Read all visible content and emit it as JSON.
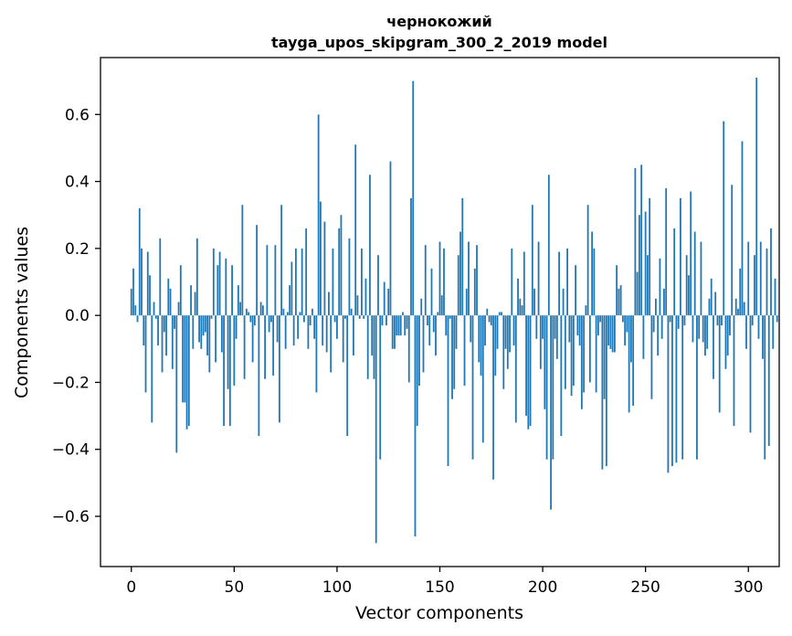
{
  "chart_data": {
    "type": "bar",
    "title": "чернокожий",
    "subtitle": "tayga_upos_skipgram_300_2_2019 model",
    "xlabel": "Vector components",
    "ylabel": "Components values",
    "xlim": [
      -15,
      315
    ],
    "ylim": [
      -0.75,
      0.77
    ],
    "xticks": [
      0,
      50,
      100,
      150,
      200,
      250,
      300
    ],
    "xtick_labels": [
      "0",
      "50",
      "100",
      "150",
      "200",
      "250",
      "300"
    ],
    "yticks": [
      -0.6,
      -0.4,
      -0.2,
      0.0,
      0.2,
      0.4,
      0.6
    ],
    "ytick_labels": [
      "−0.6",
      "−0.4",
      "−0.2",
      "0.0",
      "0.2",
      "0.4",
      "0.6"
    ],
    "bar_color": "#1f77b4",
    "grid": false,
    "values": [
      0.08,
      0.14,
      0.03,
      -0.02,
      0.32,
      0.2,
      -0.09,
      -0.23,
      0.19,
      0.12,
      -0.32,
      0.04,
      -0.01,
      -0.09,
      0.23,
      -0.17,
      -0.05,
      -0.12,
      0.11,
      0.08,
      -0.16,
      -0.04,
      -0.41,
      0.04,
      0.15,
      -0.26,
      -0.26,
      -0.34,
      -0.33,
      0.09,
      -0.1,
      0.07,
      0.23,
      -0.08,
      -0.1,
      -0.06,
      -0.05,
      -0.12,
      -0.17,
      -0.01,
      0.2,
      -0.14,
      0.15,
      0.19,
      -0.11,
      -0.33,
      0.17,
      -0.22,
      -0.33,
      0.15,
      -0.21,
      -0.07,
      0.09,
      0.04,
      0.33,
      -0.19,
      0.02,
      0.01,
      -0.02,
      -0.14,
      -0.03,
      0.27,
      -0.36,
      0.04,
      0.03,
      -0.19,
      0.21,
      -0.05,
      -0.02,
      -0.18,
      0.21,
      -0.08,
      -0.32,
      0.33,
      0.02,
      -0.1,
      0.01,
      0.09,
      0.16,
      -0.09,
      0.2,
      -0.07,
      0.01,
      0.2,
      -0.02,
      0.26,
      -0.1,
      -0.03,
      0.02,
      -0.07,
      -0.23,
      0.6,
      0.34,
      -0.09,
      0.28,
      -0.11,
      0.07,
      -0.17,
      0.2,
      -0.02,
      -0.07,
      0.26,
      0.3,
      -0.14,
      -0.01,
      -0.36,
      0.23,
      0.02,
      -0.12,
      0.51,
      0.06,
      -0.01,
      0.2,
      -0.01,
      0.11,
      -0.19,
      0.42,
      -0.12,
      -0.19,
      -0.68,
      0.18,
      -0.43,
      -0.03,
      0.1,
      -0.03,
      0.08,
      0.46,
      -0.1,
      -0.1,
      -0.06,
      -0.06,
      -0.06,
      0.01,
      -0.06,
      -0.04,
      -0.2,
      0.35,
      0.7,
      -0.66,
      -0.33,
      -0.21,
      0.05,
      -0.17,
      0.21,
      -0.03,
      -0.09,
      0.14,
      -0.05,
      -0.12,
      0.01,
      0.22,
      0.06,
      0.2,
      -0.06,
      -0.45,
      -0.01,
      -0.25,
      -0.22,
      -0.1,
      0.18,
      0.25,
      0.35,
      -0.21,
      0.08,
      0.22,
      -0.08,
      -0.43,
      0.14,
      0.21,
      -0.14,
      -0.18,
      -0.38,
      -0.09,
      0.02,
      -0.02,
      -0.03,
      -0.49,
      -0.18,
      -0.1,
      0.01,
      0.01,
      -0.22,
      -0.1,
      -0.16,
      -0.11,
      0.2,
      -0.09,
      -0.32,
      0.11,
      0.05,
      0.03,
      0.19,
      -0.3,
      -0.34,
      -0.33,
      0.33,
      0.08,
      -0.07,
      0.22,
      -0.16,
      -0.07,
      -0.28,
      -0.43,
      0.42,
      -0.58,
      -0.43,
      -0.07,
      -0.13,
      0.19,
      -0.36,
      0.08,
      -0.22,
      0.2,
      -0.08,
      -0.24,
      -0.21,
      0.15,
      -0.06,
      -0.09,
      -0.28,
      -0.23,
      0.03,
      0.33,
      -0.2,
      0.25,
      0.2,
      -0.23,
      -0.06,
      -0.02,
      -0.46,
      -0.25,
      -0.45,
      -0.09,
      -0.1,
      -0.11,
      -0.11,
      0.15,
      0.08,
      0.09,
      -0.02,
      -0.09,
      -0.05,
      -0.29,
      -0.14,
      -0.27,
      0.44,
      0.13,
      0.3,
      0.45,
      -0.13,
      0.31,
      0.18,
      0.35,
      -0.25,
      -0.05,
      0.05,
      -0.12,
      0.17,
      -0.07,
      0.08,
      0.38,
      -0.47,
      -0.02,
      -0.45,
      0.26,
      -0.44,
      -0.04,
      0.35,
      -0.43,
      -0.03,
      0.18,
      0.12,
      0.37,
      -0.08,
      0.25,
      -0.43,
      -0.07,
      0.22,
      -0.08,
      -0.12,
      -0.1,
      0.05,
      0.11,
      -0.19,
      0.07,
      -0.03,
      -0.29,
      -0.03,
      0.58,
      -0.16,
      -0.12,
      -0.06,
      0.39,
      -0.33,
      0.05,
      0.02,
      0.14,
      0.52,
      0.04,
      -0.1,
      0.22,
      -0.35,
      -0.03,
      0.18,
      0.71,
      -0.07,
      0.22,
      -0.13,
      -0.43,
      0.2,
      -0.39,
      0.26,
      -0.1,
      0.11,
      -0.02
    ]
  }
}
